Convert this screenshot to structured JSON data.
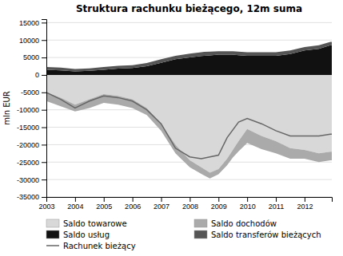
{
  "chart_data": {
    "type": "area",
    "title": "Struktura rachunku bieżącego, 12m suma",
    "ylabel": "mln EUR",
    "stacked": true,
    "grid": true,
    "legend": "bottom",
    "xlim": [
      2003.0,
      2012.95
    ],
    "xticks": [
      2003,
      2004,
      2005,
      2006,
      2007,
      2008,
      2009,
      2010,
      2011,
      2012
    ],
    "ylim": [
      -35000,
      16000
    ],
    "yticks": [
      -35000,
      -30000,
      -25000,
      -20000,
      -15000,
      -10000,
      -5000,
      0,
      5000,
      10000,
      15000
    ],
    "x": [
      2003.0,
      2003.5,
      2004.0,
      2004.5,
      2005.0,
      2005.5,
      2006.0,
      2006.5,
      2007.0,
      2007.5,
      2008.0,
      2008.4,
      2008.5,
      2008.7,
      2009.0,
      2009.3,
      2009.5,
      2009.7,
      2010.0,
      2010.5,
      2011.0,
      2011.5,
      2012.0,
      2012.5,
      2012.9,
      2012.95
    ],
    "series": [
      {
        "name": "Saldo towarowe",
        "color": "#d8d8d8",
        "type": "area",
        "values": [
          -5000,
          -6500,
          -8500,
          -7000,
          -5500,
          -6000,
          -7000,
          -9500,
          -14000,
          -20000,
          -24500,
          -26500,
          -27000,
          -28000,
          -27000,
          -24000,
          -21500,
          -19000,
          -15500,
          -17500,
          -19000,
          -21000,
          -21500,
          -22500,
          -22000,
          -22000
        ]
      },
      {
        "name": "Saldo dochodów",
        "color": "#aaaaaa",
        "type": "area",
        "values": [
          -2500,
          -2500,
          -2000,
          -2500,
          -2500,
          -2500,
          -2500,
          -2000,
          -2000,
          -2500,
          -2000,
          -1840,
          -1800,
          -1680,
          -1500,
          -1920,
          -2200,
          -2920,
          -4000,
          -3800,
          -3500,
          -3000,
          -2500,
          -2500,
          -2500,
          -2500
        ]
      },
      {
        "name": "Saldo usług",
        "color": "#111111",
        "type": "area",
        "values": [
          1500,
          1300,
          1000,
          1200,
          1500,
          1800,
          2000,
          2500,
          3500,
          4500,
          5000,
          5400,
          5500,
          5620,
          5800,
          5800,
          5800,
          5680,
          5500,
          5500,
          5500,
          6000,
          7000,
          7500,
          8500,
          8500
        ]
      },
      {
        "name": "Saldo transferów bieżących",
        "color": "#555555",
        "type": "area",
        "values": [
          800,
          800,
          700,
          700,
          800,
          800,
          800,
          900,
          1000,
          1000,
          1100,
          1100,
          1100,
          1060,
          1000,
          1000,
          1000,
          1000,
          1000,
          1000,
          1000,
          1000,
          1000,
          1000,
          1000,
          1000
        ]
      },
      {
        "name": "Rachunek bieżący",
        "color": "#666666",
        "type": "line",
        "x": [
          2003.0,
          2003.5,
          2004.0,
          2004.5,
          2005.0,
          2005.5,
          2006.0,
          2006.5,
          2007.0,
          2007.5,
          2008.0,
          2008.4,
          2008.7,
          2009.0,
          2009.3,
          2009.7,
          2010.0,
          2010.5,
          2011.0,
          2011.5,
          2012.0,
          2012.5,
          2012.9,
          2012.95
        ],
        "values": [
          -5000,
          -7000,
          -9500,
          -7500,
          -6000,
          -6500,
          -7500,
          -10000,
          -14000,
          -21000,
          -23500,
          -24000,
          -23500,
          -23000,
          -18000,
          -13500,
          -12500,
          -14000,
          -16000,
          -17500,
          -17500,
          -17500,
          -17000,
          -17000
        ]
      }
    ]
  }
}
